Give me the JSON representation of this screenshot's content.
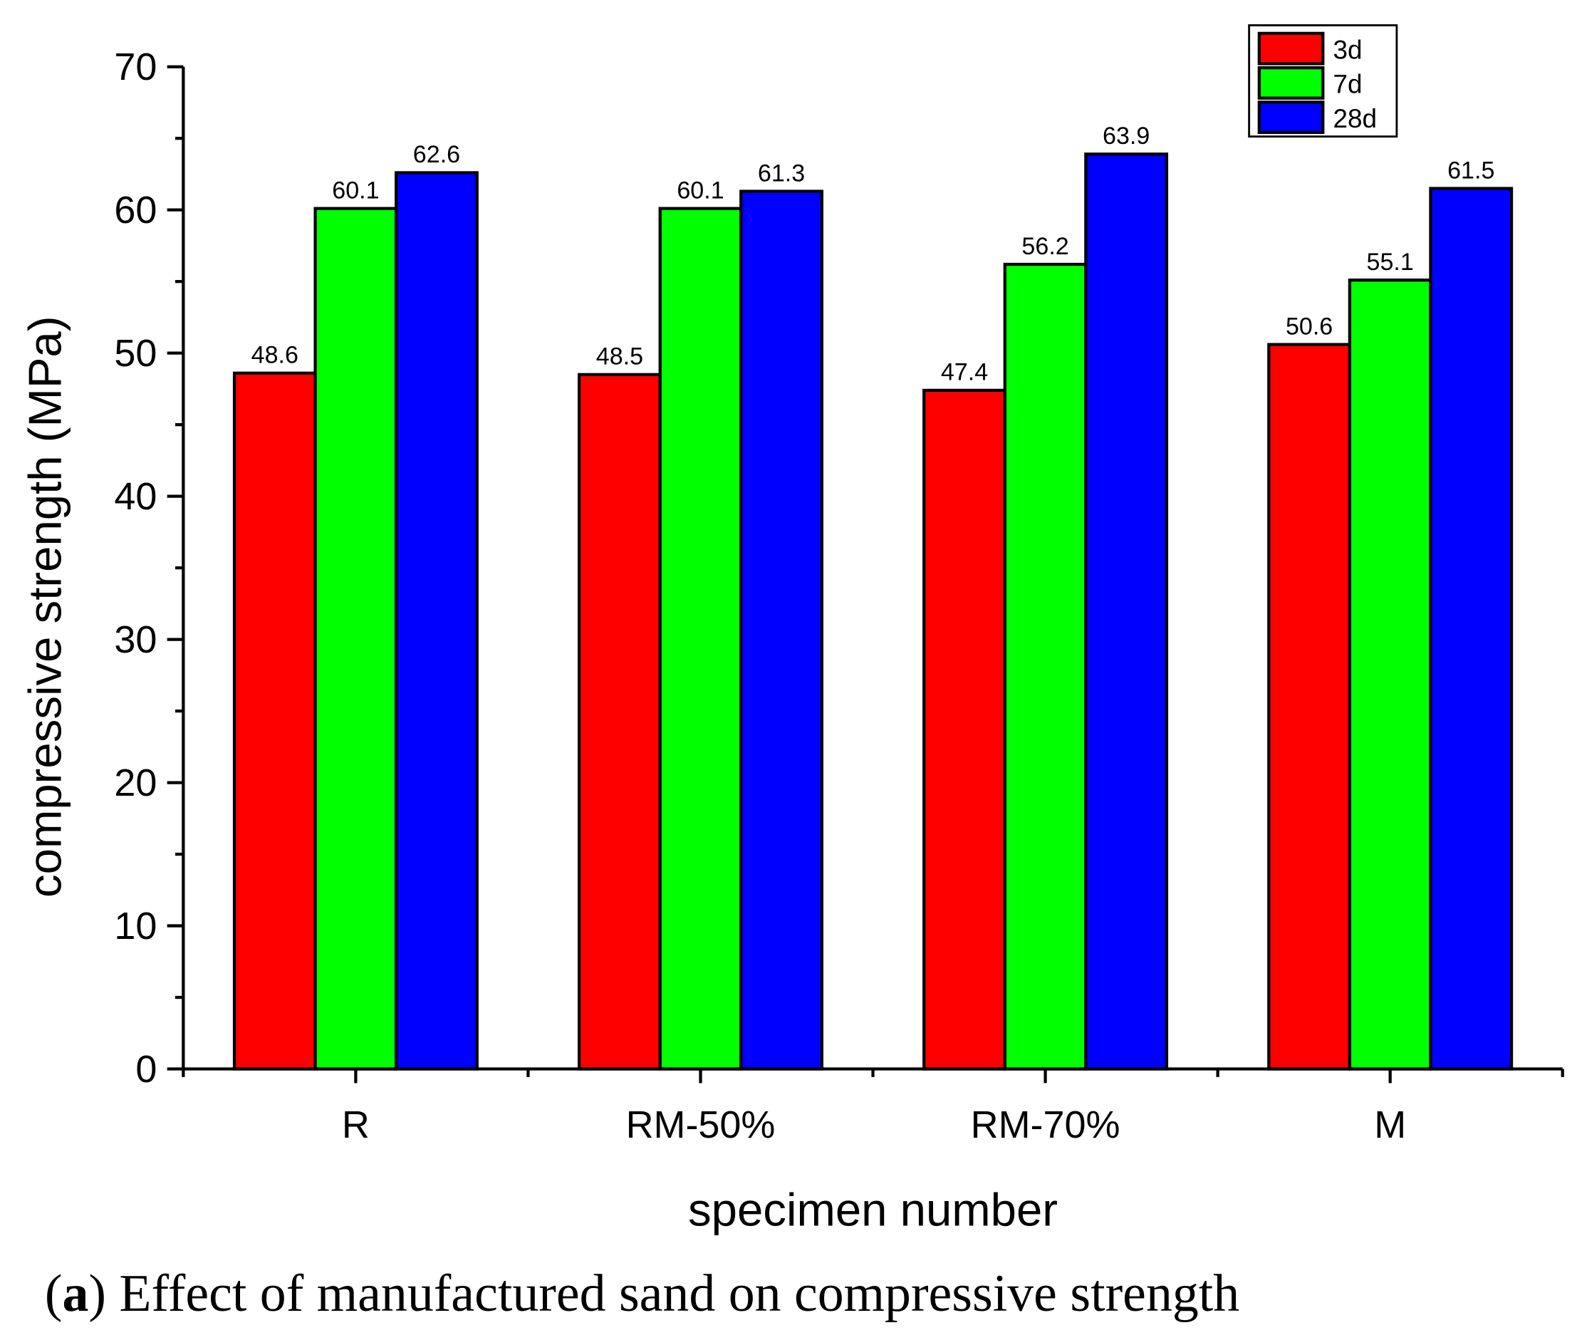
{
  "chart_data": {
    "type": "bar",
    "title": "",
    "xlabel": "specimen number",
    "ylabel": "compressive strength (MPa)",
    "ylim": [
      0,
      70
    ],
    "yticks": [
      0,
      10,
      20,
      30,
      40,
      50,
      60,
      70
    ],
    "categories": [
      "R",
      "RM-50%",
      "RM-70%",
      "M"
    ],
    "series": [
      {
        "name": "3d",
        "color": "#ff0000",
        "values": [
          48.6,
          48.5,
          47.4,
          50.6
        ]
      },
      {
        "name": "7d",
        "color": "#00ff00",
        "values": [
          60.1,
          60.1,
          56.2,
          55.1
        ]
      },
      {
        "name": "28d",
        "color": "#0000ff",
        "values": [
          62.6,
          61.3,
          63.9,
          61.5
        ]
      }
    ],
    "data_labels": true,
    "grid": false,
    "legend_position": "top-right"
  },
  "caption": {
    "label": "(a)",
    "label_letter": "a",
    "text": "Effect of manufactured sand on compressive strength"
  }
}
